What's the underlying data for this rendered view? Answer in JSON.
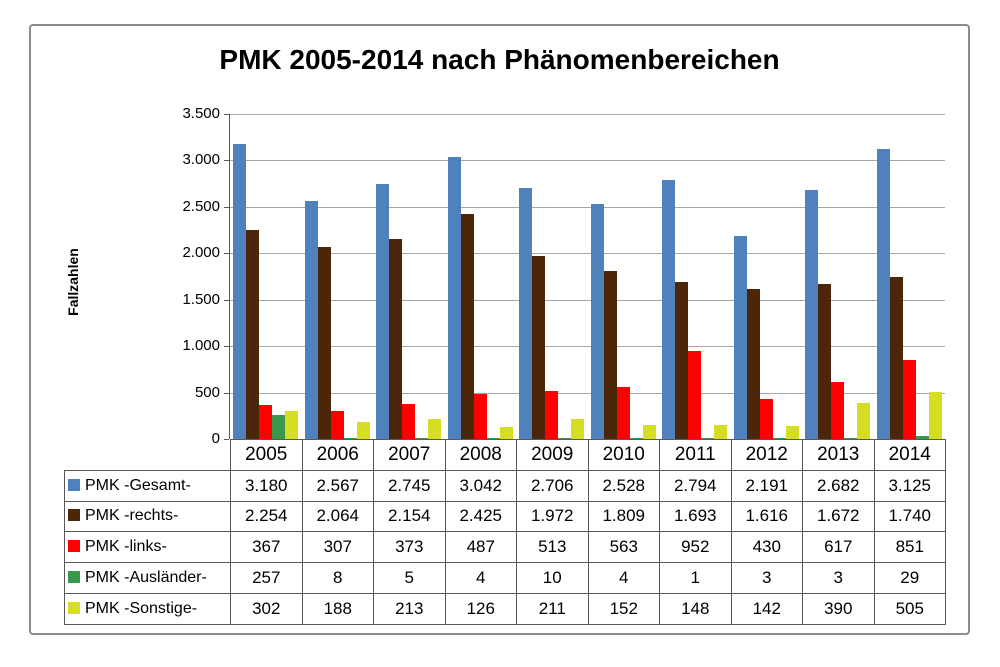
{
  "chart_data": {
    "type": "bar",
    "title": "PMK 2005-2014 nach Phänomenbereichen",
    "xlabel": "",
    "ylabel": "Fallzahlen",
    "ylim": [
      0,
      3500
    ],
    "grid": true,
    "legend_position": "table-left",
    "y_ticks": [
      "3.500",
      "3.000",
      "2.500",
      "2.000",
      "1.500",
      "1.000",
      "500",
      "0"
    ],
    "categories": [
      "2005",
      "2006",
      "2007",
      "2008",
      "2009",
      "2010",
      "2011",
      "2012",
      "2013",
      "2014"
    ],
    "series": [
      {
        "name": "PMK -Gesamt-",
        "color": "#4f81bd",
        "values": [
          3180,
          2567,
          2745,
          3042,
          2706,
          2528,
          2794,
          2191,
          2682,
          3125
        ],
        "values_display": [
          "3.180",
          "2.567",
          "2.745",
          "3.042",
          "2.706",
          "2.528",
          "2.794",
          "2.191",
          "2.682",
          "3.125"
        ]
      },
      {
        "name": "PMK -rechts-",
        "color": "#4c2608",
        "values": [
          2254,
          2064,
          2154,
          2425,
          1972,
          1809,
          1693,
          1616,
          1672,
          1740
        ],
        "values_display": [
          "2.254",
          "2.064",
          "2.154",
          "2.425",
          "1.972",
          "1.809",
          "1.693",
          "1.616",
          "1.672",
          "1.740"
        ]
      },
      {
        "name": "PMK -links-",
        "color": "#ff0000",
        "values": [
          367,
          307,
          373,
          487,
          513,
          563,
          952,
          430,
          617,
          851
        ],
        "values_display": [
          "367",
          "307",
          "373",
          "487",
          "513",
          "563",
          "952",
          "430",
          "617",
          "851"
        ]
      },
      {
        "name": "PMK -Ausländer-",
        "color": "#39984b",
        "values": [
          257,
          8,
          5,
          4,
          10,
          4,
          1,
          3,
          3,
          29
        ],
        "values_display": [
          "257",
          "8",
          "5",
          "4",
          "10",
          "4",
          "1",
          "3",
          "3",
          "29"
        ]
      },
      {
        "name": "PMK -Sonstige-",
        "color": "#d6de23",
        "values": [
          302,
          188,
          213,
          126,
          211,
          152,
          148,
          142,
          390,
          505
        ],
        "values_display": [
          "302",
          "188",
          "213",
          "126",
          "211",
          "152",
          "148",
          "142",
          "390",
          "505"
        ]
      }
    ]
  },
  "colors": {
    "frame_border": "#8c8c8c",
    "gridline": "#a6a6a6",
    "axis": "#595959",
    "table_border": "#595959",
    "background": "#ffffff"
  }
}
